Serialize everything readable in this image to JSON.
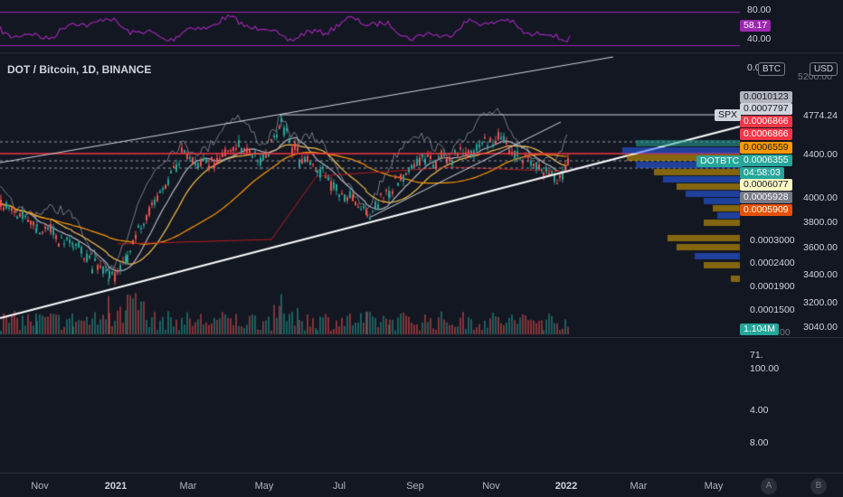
{
  "symbol": {
    "title": "DOT / Bitcoin, 1D, BINANCE"
  },
  "rsi": {
    "value_tag": "58.17",
    "levels": [
      "80.00",
      "40.00"
    ],
    "color": "#9c27b0"
  },
  "price_axis_labels": [
    "0.0003000",
    "0.0002400",
    "0.0001900",
    "0.0001500"
  ],
  "secondary_axis_labels": [
    "4400.00",
    "4000.00",
    "3800.00",
    "3600.00",
    "3400.00",
    "3200.00",
    "3040.00"
  ],
  "truncated_labels": {
    "top_left": "0.0",
    "top_right": "5200.00",
    "bottom_right": "00"
  },
  "units": {
    "left": "BTC",
    "right": "USD"
  },
  "price_tags": [
    {
      "name": "tag-1",
      "text": "0.0010123",
      "bg": "#b2b5be"
    },
    {
      "name": "tag-2",
      "text": "0.0007797",
      "bg": "#d1d4dc"
    },
    {
      "name": "tag-3",
      "text": "0.0006866",
      "bg": "#f23645"
    },
    {
      "name": "tag-4",
      "text": "0.0006866",
      "bg": "#f23645"
    },
    {
      "name": "tag-5",
      "text": "0.0006559",
      "bg": "#ff9800"
    },
    {
      "name": "tag-6",
      "text": "0.0006355",
      "bg": "#26a69a"
    },
    {
      "name": "tag-7",
      "text": "04:58:03",
      "bg": "#26a69a"
    },
    {
      "name": "tag-8",
      "text": "0.0006077",
      "bg": "#fff9c4"
    },
    {
      "name": "tag-9",
      "text": "0.0005928",
      "bg": "#787b86"
    },
    {
      "name": "tag-10",
      "text": "0.0005909",
      "bg": "#e65100"
    }
  ],
  "spx": {
    "label": "SPX",
    "value": "4774.24"
  },
  "dotbtc_label": "DOTBTC",
  "volume": {
    "tag": "1.104M"
  },
  "lower_pane": {
    "labels": [
      "71.",
      "100.00",
      "4.00",
      "8.00"
    ]
  },
  "x_axis": [
    "Nov",
    "2021",
    "Mar",
    "May",
    "Jul",
    "Sep",
    "Nov",
    "2022",
    "Mar",
    "May"
  ],
  "x_bold": [
    "2021",
    "2022"
  ],
  "buttons": {
    "auto": "A",
    "scale": "B"
  }
}
